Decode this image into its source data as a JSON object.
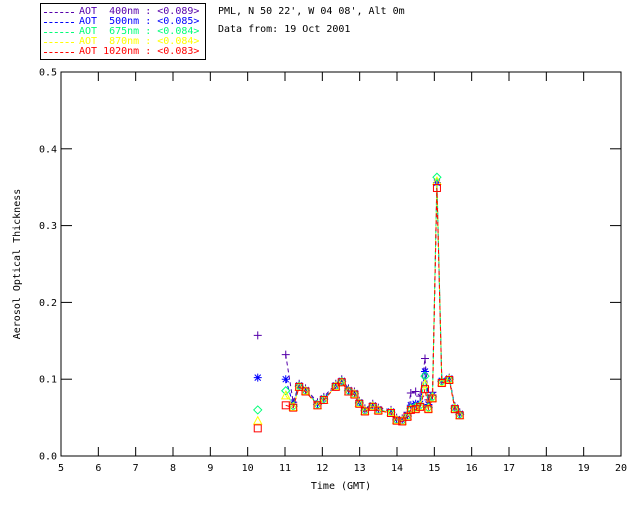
{
  "header": {
    "location_line": "PML, N 50 22', W 04 08', Alt 0m",
    "date_line": "Data from: 19 Oct 2001"
  },
  "chart_data": {
    "type": "line",
    "title": "",
    "xlabel": "Time (GMT)",
    "ylabel": "Aerosol Optical Thickness",
    "xlim": [
      5,
      20
    ],
    "ylim": [
      0.0,
      0.5
    ],
    "x_tick_labels": [
      "5",
      "6",
      "7",
      "8",
      "9",
      "10",
      "11",
      "12",
      "13",
      "14",
      "15",
      "16",
      "17",
      "18",
      "19",
      "20"
    ],
    "y_tick_labels": [
      "0.0",
      "0.1",
      "0.2",
      "0.3",
      "0.4",
      "0.5"
    ],
    "grid": false,
    "line_style": "dashed",
    "legend_position": "top-left-outside",
    "line_segment": [
      1,
      29
    ],
    "x": [
      10.27,
      11.02,
      11.22,
      11.38,
      11.55,
      11.87,
      12.04,
      12.36,
      12.52,
      12.7,
      12.86,
      12.99,
      13.14,
      13.35,
      13.5,
      13.84,
      13.99,
      14.14,
      14.28,
      14.37,
      14.5,
      14.62,
      14.75,
      14.84,
      14.95,
      15.07,
      15.2,
      15.4,
      15.55,
      15.68
    ],
    "series": [
      {
        "name": "AOT 400nm",
        "wavelength_nm": 400,
        "mean_label": "<0.089>",
        "legend_label": "AOT  400nm : <0.089>",
        "color": "#5500aa",
        "marker": "plus",
        "values": [
          0.157,
          0.132,
          0.07,
          0.094,
          0.088,
          0.07,
          0.077,
          0.094,
          0.1,
          0.088,
          0.084,
          0.072,
          0.062,
          0.068,
          0.063,
          0.06,
          0.05,
          0.049,
          0.057,
          0.082,
          0.084,
          0.078,
          0.127,
          0.073,
          0.083,
          0.353,
          0.1,
          0.102,
          0.065,
          0.057
        ]
      },
      {
        "name": "AOT 500nm",
        "wavelength_nm": 500,
        "mean_label": "<0.085>",
        "legend_label": "AOT  500nm : <0.085>",
        "color": "#0000ff",
        "marker": "asterisk",
        "values": [
          0.102,
          0.1,
          0.067,
          0.092,
          0.086,
          0.068,
          0.075,
          0.092,
          0.098,
          0.086,
          0.082,
          0.07,
          0.06,
          0.066,
          0.061,
          0.058,
          0.048,
          0.047,
          0.053,
          0.066,
          0.068,
          0.068,
          0.11,
          0.067,
          0.079,
          0.356,
          0.098,
          0.101,
          0.063,
          0.055
        ]
      },
      {
        "name": "AOT 675nm",
        "wavelength_nm": 675,
        "mean_label": "<0.084>",
        "legend_label": "AOT  675nm : <0.084>",
        "color": "#00ff77",
        "marker": "diamond",
        "values": [
          0.06,
          0.085,
          0.065,
          0.091,
          0.085,
          0.067,
          0.074,
          0.091,
          0.097,
          0.085,
          0.081,
          0.069,
          0.059,
          0.065,
          0.06,
          0.057,
          0.047,
          0.046,
          0.052,
          0.062,
          0.064,
          0.066,
          0.104,
          0.063,
          0.077,
          0.363,
          0.097,
          0.1,
          0.062,
          0.054
        ]
      },
      {
        "name": "AOT 870nm",
        "wavelength_nm": 870,
        "mean_label": "<0.084>",
        "legend_label": "AOT  870nm : <0.084>",
        "color": "#ffff00",
        "marker": "triangle",
        "values": [
          0.046,
          0.079,
          0.064,
          0.09,
          0.085,
          0.066,
          0.073,
          0.091,
          0.096,
          0.084,
          0.081,
          0.069,
          0.059,
          0.065,
          0.06,
          0.057,
          0.047,
          0.046,
          0.052,
          0.061,
          0.062,
          0.065,
          0.094,
          0.062,
          0.076,
          0.358,
          0.096,
          0.1,
          0.062,
          0.053
        ]
      },
      {
        "name": "AOT 1020nm",
        "wavelength_nm": 1020,
        "mean_label": "<0.083>",
        "legend_label": "AOT 1020nm : <0.083>",
        "color": "#ff0000",
        "marker": "square",
        "values": [
          0.036,
          0.066,
          0.063,
          0.09,
          0.084,
          0.066,
          0.073,
          0.09,
          0.096,
          0.084,
          0.08,
          0.068,
          0.058,
          0.064,
          0.059,
          0.056,
          0.046,
          0.045,
          0.051,
          0.06,
          0.061,
          0.064,
          0.087,
          0.061,
          0.075,
          0.349,
          0.095,
          0.099,
          0.061,
          0.053
        ]
      }
    ]
  }
}
